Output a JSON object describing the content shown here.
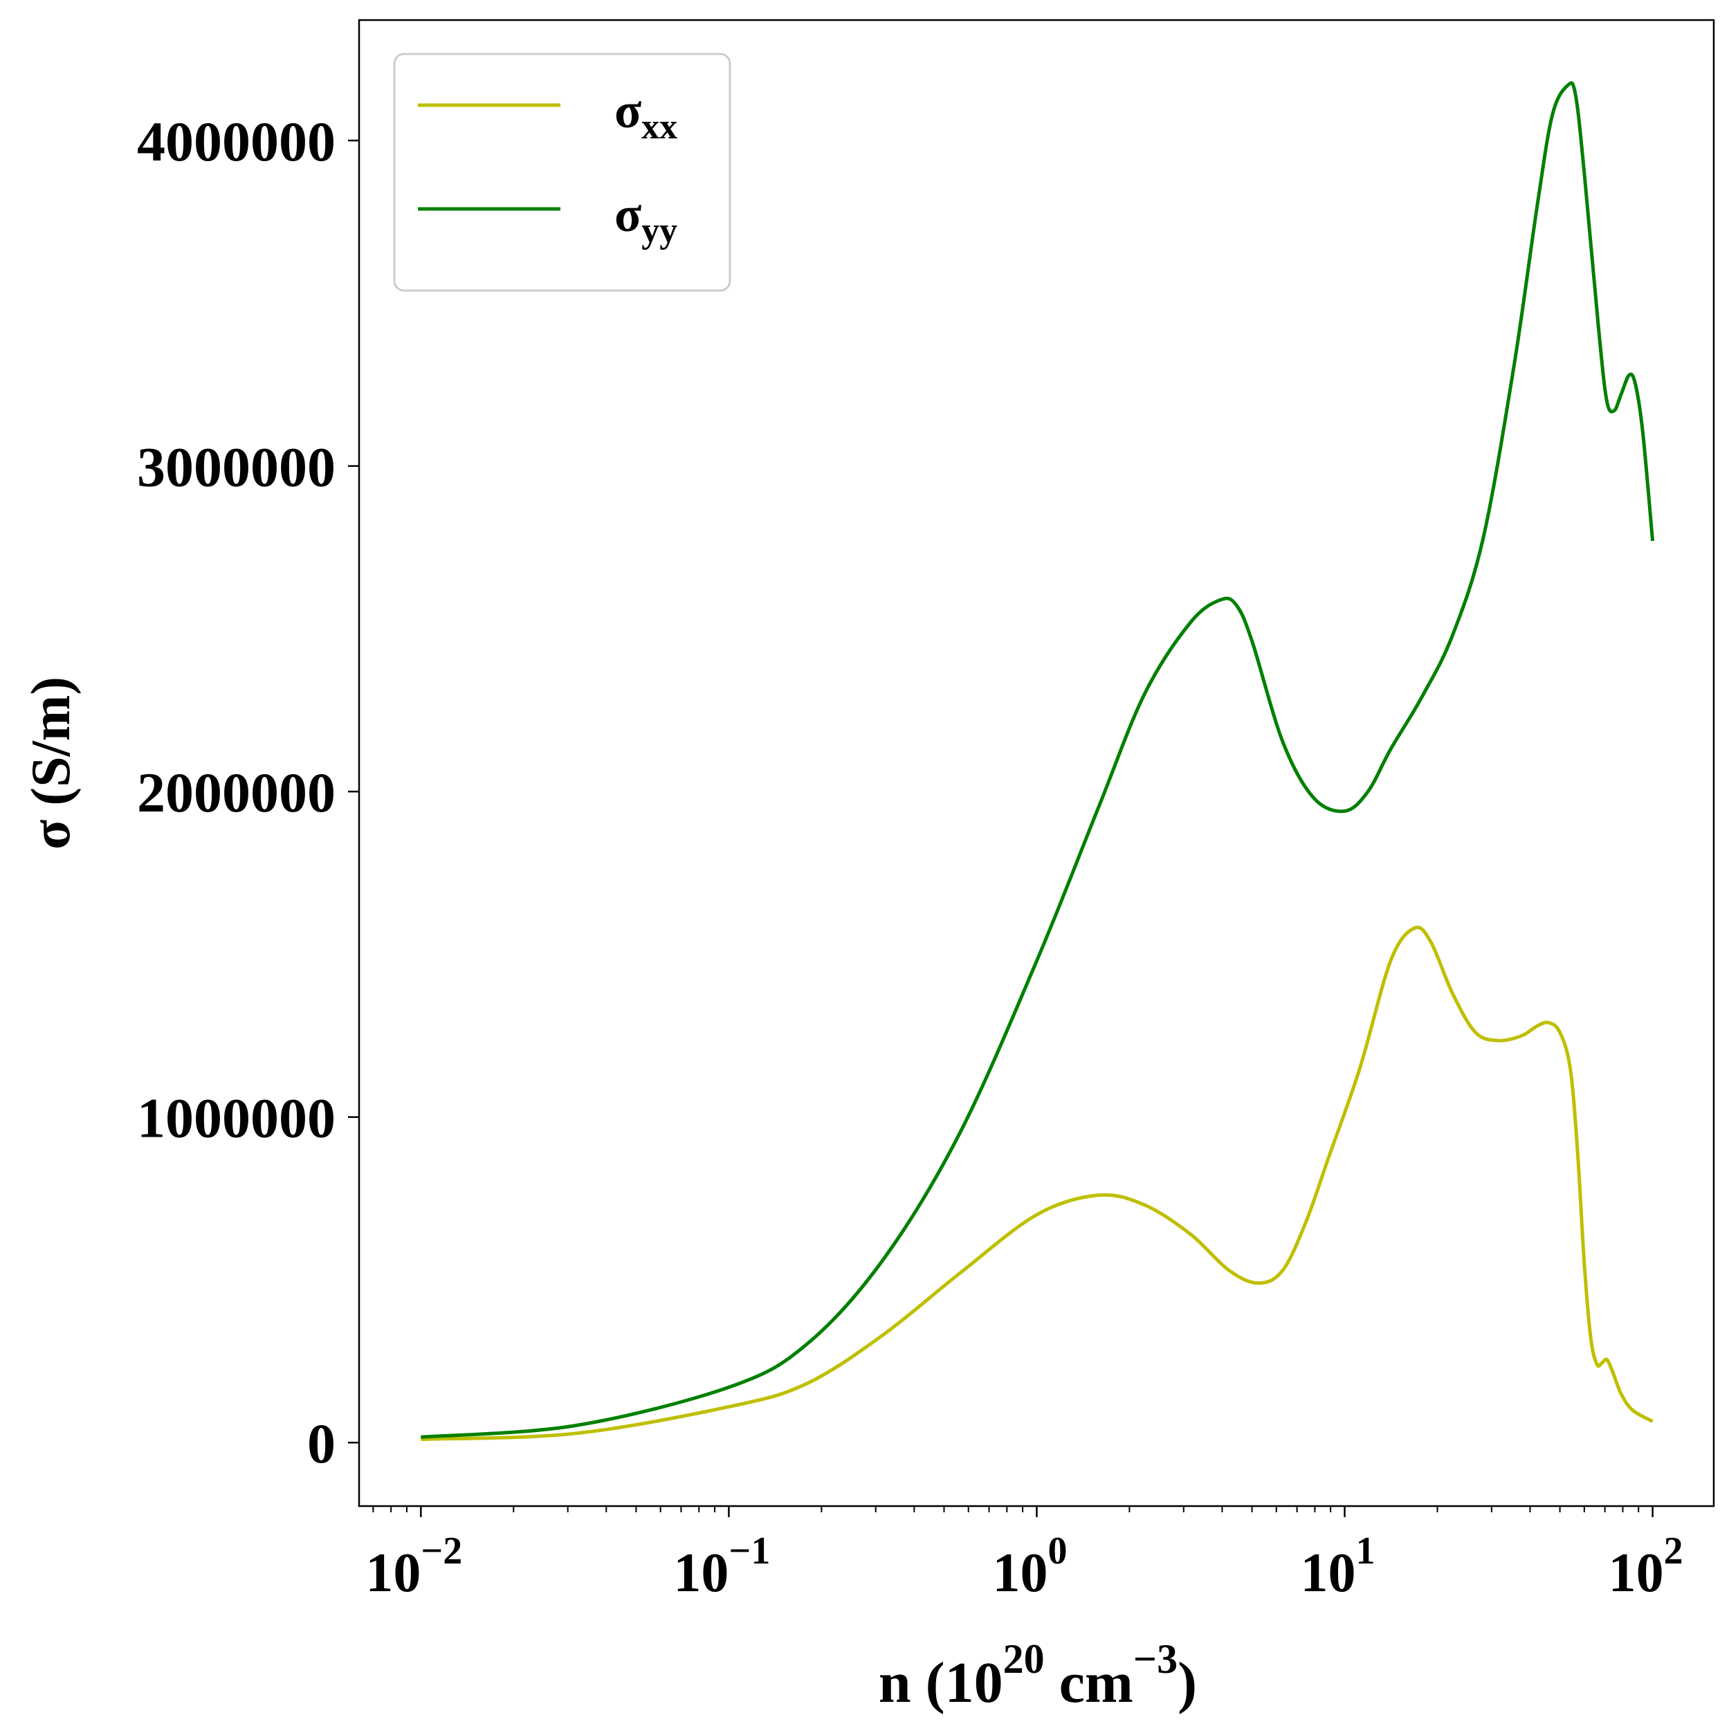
{
  "chart_data": {
    "type": "line",
    "title": "",
    "xlabel": {
      "base": "n (10",
      "sup1": "20",
      "mid": " cm",
      "sup2": "−3",
      "end": ")"
    },
    "ylabel": "σ (S/m)",
    "xscale": "log",
    "xlim": [
      0.0063,
      158
    ],
    "ylim": [
      -195000,
      4370000
    ],
    "grid": false,
    "legend_position": "top-left",
    "x_ticks": [
      {
        "value": 0.01,
        "base": "10",
        "exp": "−2"
      },
      {
        "value": 0.1,
        "base": "10",
        "exp": "−1"
      },
      {
        "value": 1,
        "base": "10",
        "exp": "0"
      },
      {
        "value": 10,
        "base": "10",
        "exp": "1"
      },
      {
        "value": 100,
        "base": "10",
        "exp": "2"
      }
    ],
    "y_ticks": [
      {
        "value": 0,
        "label": "0"
      },
      {
        "value": 1000000,
        "label": "1000000"
      },
      {
        "value": 2000000,
        "label": "2000000"
      },
      {
        "value": 3000000,
        "label": "3000000"
      },
      {
        "value": 4000000,
        "label": "4000000"
      }
    ],
    "series": [
      {
        "name": "σ",
        "subscript": "xx",
        "color": "#bfbf00",
        "points": [
          [
            0.01,
            10000
          ],
          [
            0.0316,
            28000
          ],
          [
            0.1,
            110000
          ],
          [
            0.178,
            180000
          ],
          [
            0.316,
            330000
          ],
          [
            0.562,
            520000
          ],
          [
            1.0,
            700000
          ],
          [
            1.585,
            760000
          ],
          [
            2.24,
            730000
          ],
          [
            3.16,
            640000
          ],
          [
            4.2,
            530000
          ],
          [
            5.25,
            490000
          ],
          [
            6.3,
            530000
          ],
          [
            7.5,
            680000
          ],
          [
            8.9,
            880000
          ],
          [
            11.2,
            1150000
          ],
          [
            14.1,
            1480000
          ],
          [
            16.8,
            1580000
          ],
          [
            19.0,
            1540000
          ],
          [
            22.4,
            1380000
          ],
          [
            26.6,
            1260000
          ],
          [
            31.6,
            1235000
          ],
          [
            37.6,
            1250000
          ],
          [
            42.2,
            1280000
          ],
          [
            46.0,
            1290000
          ],
          [
            50.0,
            1260000
          ],
          [
            54.0,
            1150000
          ],
          [
            57.0,
            900000
          ],
          [
            60.0,
            550000
          ],
          [
            63.0,
            320000
          ],
          [
            66.0,
            240000
          ],
          [
            68.5,
            245000
          ],
          [
            71.0,
            255000
          ],
          [
            74.0,
            220000
          ],
          [
            79.0,
            150000
          ],
          [
            86.0,
            100000
          ],
          [
            100.0,
            65000
          ]
        ]
      },
      {
        "name": "σ",
        "subscript": "yy",
        "color": "#008000",
        "points": [
          [
            0.01,
            17000
          ],
          [
            0.0316,
            52000
          ],
          [
            0.1,
            170000
          ],
          [
            0.178,
            300000
          ],
          [
            0.316,
            560000
          ],
          [
            0.562,
            950000
          ],
          [
            1.0,
            1480000
          ],
          [
            1.585,
            1950000
          ],
          [
            2.24,
            2300000
          ],
          [
            3.16,
            2520000
          ],
          [
            3.98,
            2590000
          ],
          [
            4.47,
            2570000
          ],
          [
            5.01,
            2460000
          ],
          [
            6.31,
            2150000
          ],
          [
            7.94,
            1980000
          ],
          [
            10.0,
            1940000
          ],
          [
            11.9,
            2000000
          ],
          [
            14.1,
            2130000
          ],
          [
            17.8,
            2290000
          ],
          [
            22.4,
            2480000
          ],
          [
            28.2,
            2780000
          ],
          [
            35.5,
            3310000
          ],
          [
            42.2,
            3800000
          ],
          [
            47.3,
            4080000
          ],
          [
            53.1,
            4170000
          ],
          [
            56.2,
            4140000
          ],
          [
            60.0,
            3900000
          ],
          [
            66.8,
            3420000
          ],
          [
            71.0,
            3200000
          ],
          [
            75.0,
            3170000
          ],
          [
            79.0,
            3220000
          ],
          [
            84.0,
            3280000
          ],
          [
            88.0,
            3250000
          ],
          [
            93.0,
            3100000
          ],
          [
            100.0,
            2770000
          ]
        ]
      }
    ]
  }
}
